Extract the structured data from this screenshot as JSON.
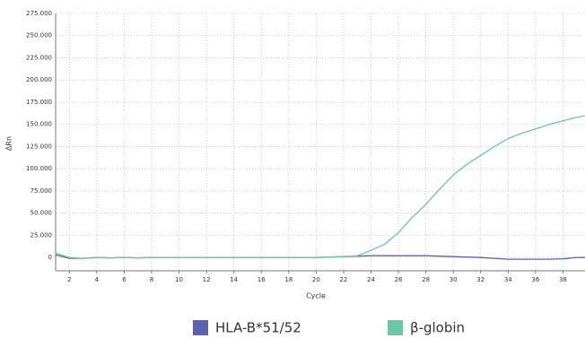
{
  "chart_data": {
    "type": "line",
    "y_label": "ΔRn",
    "x_label": "Cycle",
    "x": [
      1,
      2,
      3,
      4,
      5,
      6,
      7,
      8,
      9,
      10,
      11,
      12,
      13,
      14,
      15,
      16,
      17,
      18,
      19,
      20,
      21,
      22,
      23,
      24,
      25,
      26,
      27,
      28,
      29,
      30,
      31,
      32,
      33,
      34,
      35,
      36,
      37,
      38,
      39,
      40
    ],
    "series": [
      {
        "name": "HLA-B*51/52",
        "color": "#5b62b0",
        "values": [
          3000,
          -1000,
          -1000,
          0,
          -500,
          0,
          -500,
          0,
          0,
          0,
          0,
          0,
          0,
          0,
          0,
          0,
          0,
          0,
          0,
          0,
          500,
          1000,
          1500,
          2000,
          2000,
          2000,
          2000,
          2000,
          1500,
          1000,
          500,
          0,
          -1000,
          -2000,
          -2000,
          -2000,
          -2000,
          -1500,
          0,
          0
        ]
      },
      {
        "name": "β-globin",
        "color": "#6cc7a5",
        "values": [
          5000,
          0,
          -1000,
          0,
          -500,
          0,
          -500,
          0,
          0,
          0,
          0,
          0,
          0,
          0,
          0,
          0,
          0,
          0,
          0,
          0,
          500,
          1000,
          2000,
          8000,
          15000,
          28000,
          45000,
          60000,
          77000,
          93000,
          105000,
          115000,
          125000,
          134000,
          140000,
          145000,
          150000,
          154000,
          158000,
          161000
        ]
      }
    ],
    "xlim": [
      1,
      40
    ],
    "xticks": [
      2,
      4,
      6,
      8,
      10,
      12,
      14,
      16,
      18,
      20,
      22,
      24,
      26,
      28,
      30,
      32,
      34,
      36,
      38
    ],
    "ylim": [
      -15000,
      275000
    ],
    "yticks": [
      0,
      {
        "value": 25000,
        "label": "25.000"
      },
      {
        "value": 50000,
        "label": "50.000"
      },
      {
        "value": 75000,
        "label": "75.000"
      },
      {
        "value": 100000,
        "label": "100.000"
      },
      {
        "value": 125000,
        "label": "125.000"
      },
      {
        "value": 150000,
        "label": "150.000"
      },
      {
        "value": 175000,
        "label": "175.000"
      },
      {
        "value": 200000,
        "label": "200.000"
      },
      {
        "value": 225000,
        "label": "225.000"
      },
      {
        "value": 250000,
        "label": "250.000"
      },
      {
        "value": 275000,
        "label": "275.000"
      }
    ],
    "grid": true,
    "legend_position": "bottom"
  }
}
